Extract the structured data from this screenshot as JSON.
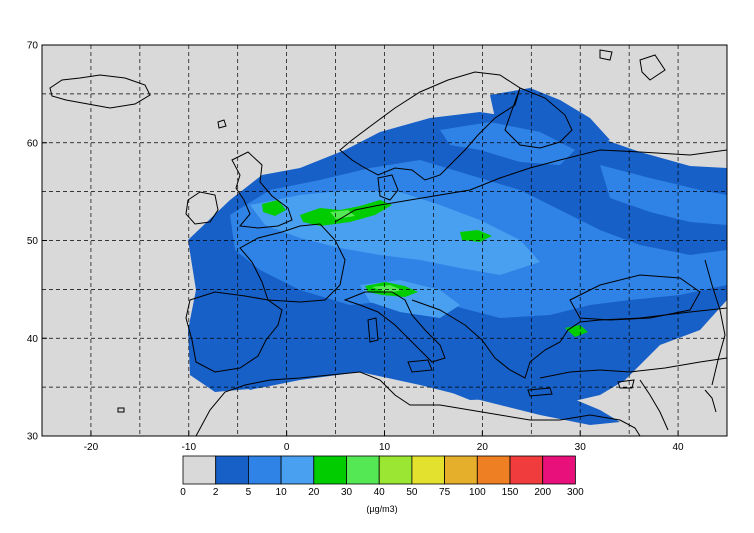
{
  "map": {
    "lon_range": [
      -25,
      45
    ],
    "lat_range": [
      30,
      70
    ],
    "x_ticks": [
      {
        "value": -20,
        "label": "-20"
      },
      {
        "value": -10,
        "label": "-10"
      },
      {
        "value": 0,
        "label": "0"
      },
      {
        "value": 10,
        "label": "10"
      },
      {
        "value": 20,
        "label": "20"
      },
      {
        "value": 30,
        "label": "30"
      },
      {
        "value": 40,
        "label": "40"
      }
    ],
    "y_ticks": [
      {
        "value": 30,
        "label": "30"
      },
      {
        "value": 40,
        "label": "40"
      },
      {
        "value": 50,
        "label": "50"
      },
      {
        "value": 60,
        "label": "60"
      },
      {
        "value": 70,
        "label": "70"
      }
    ],
    "grid_lon": [
      -20,
      -15,
      -10,
      -5,
      0,
      5,
      10,
      15,
      20,
      25,
      30,
      35,
      40
    ],
    "grid_lat": [
      35,
      40,
      45,
      50,
      55,
      60,
      65
    ],
    "grid": "dashed",
    "background_color": "#d9d9d9",
    "coastline_color": "#000000"
  },
  "legend": {
    "bins": [
      {
        "label": "0",
        "color": "#d9d9d9"
      },
      {
        "label": "2",
        "color": "#1760c8"
      },
      {
        "label": "5",
        "color": "#2f82e6"
      },
      {
        "label": "10",
        "color": "#4aa0f0"
      },
      {
        "label": "20",
        "color": "#00cc00"
      },
      {
        "label": "30",
        "color": "#55e855"
      },
      {
        "label": "40",
        "color": "#9ae632"
      },
      {
        "label": "50",
        "color": "#e3e02e"
      },
      {
        "label": "75",
        "color": "#e5ae2b"
      },
      {
        "label": "100",
        "color": "#ef7f23"
      },
      {
        "label": "150",
        "color": "#f03c3c"
      },
      {
        "label": "200",
        "color": "#e8107a"
      }
    ],
    "last_label": "300",
    "unit": "(µg/m3)"
  }
}
